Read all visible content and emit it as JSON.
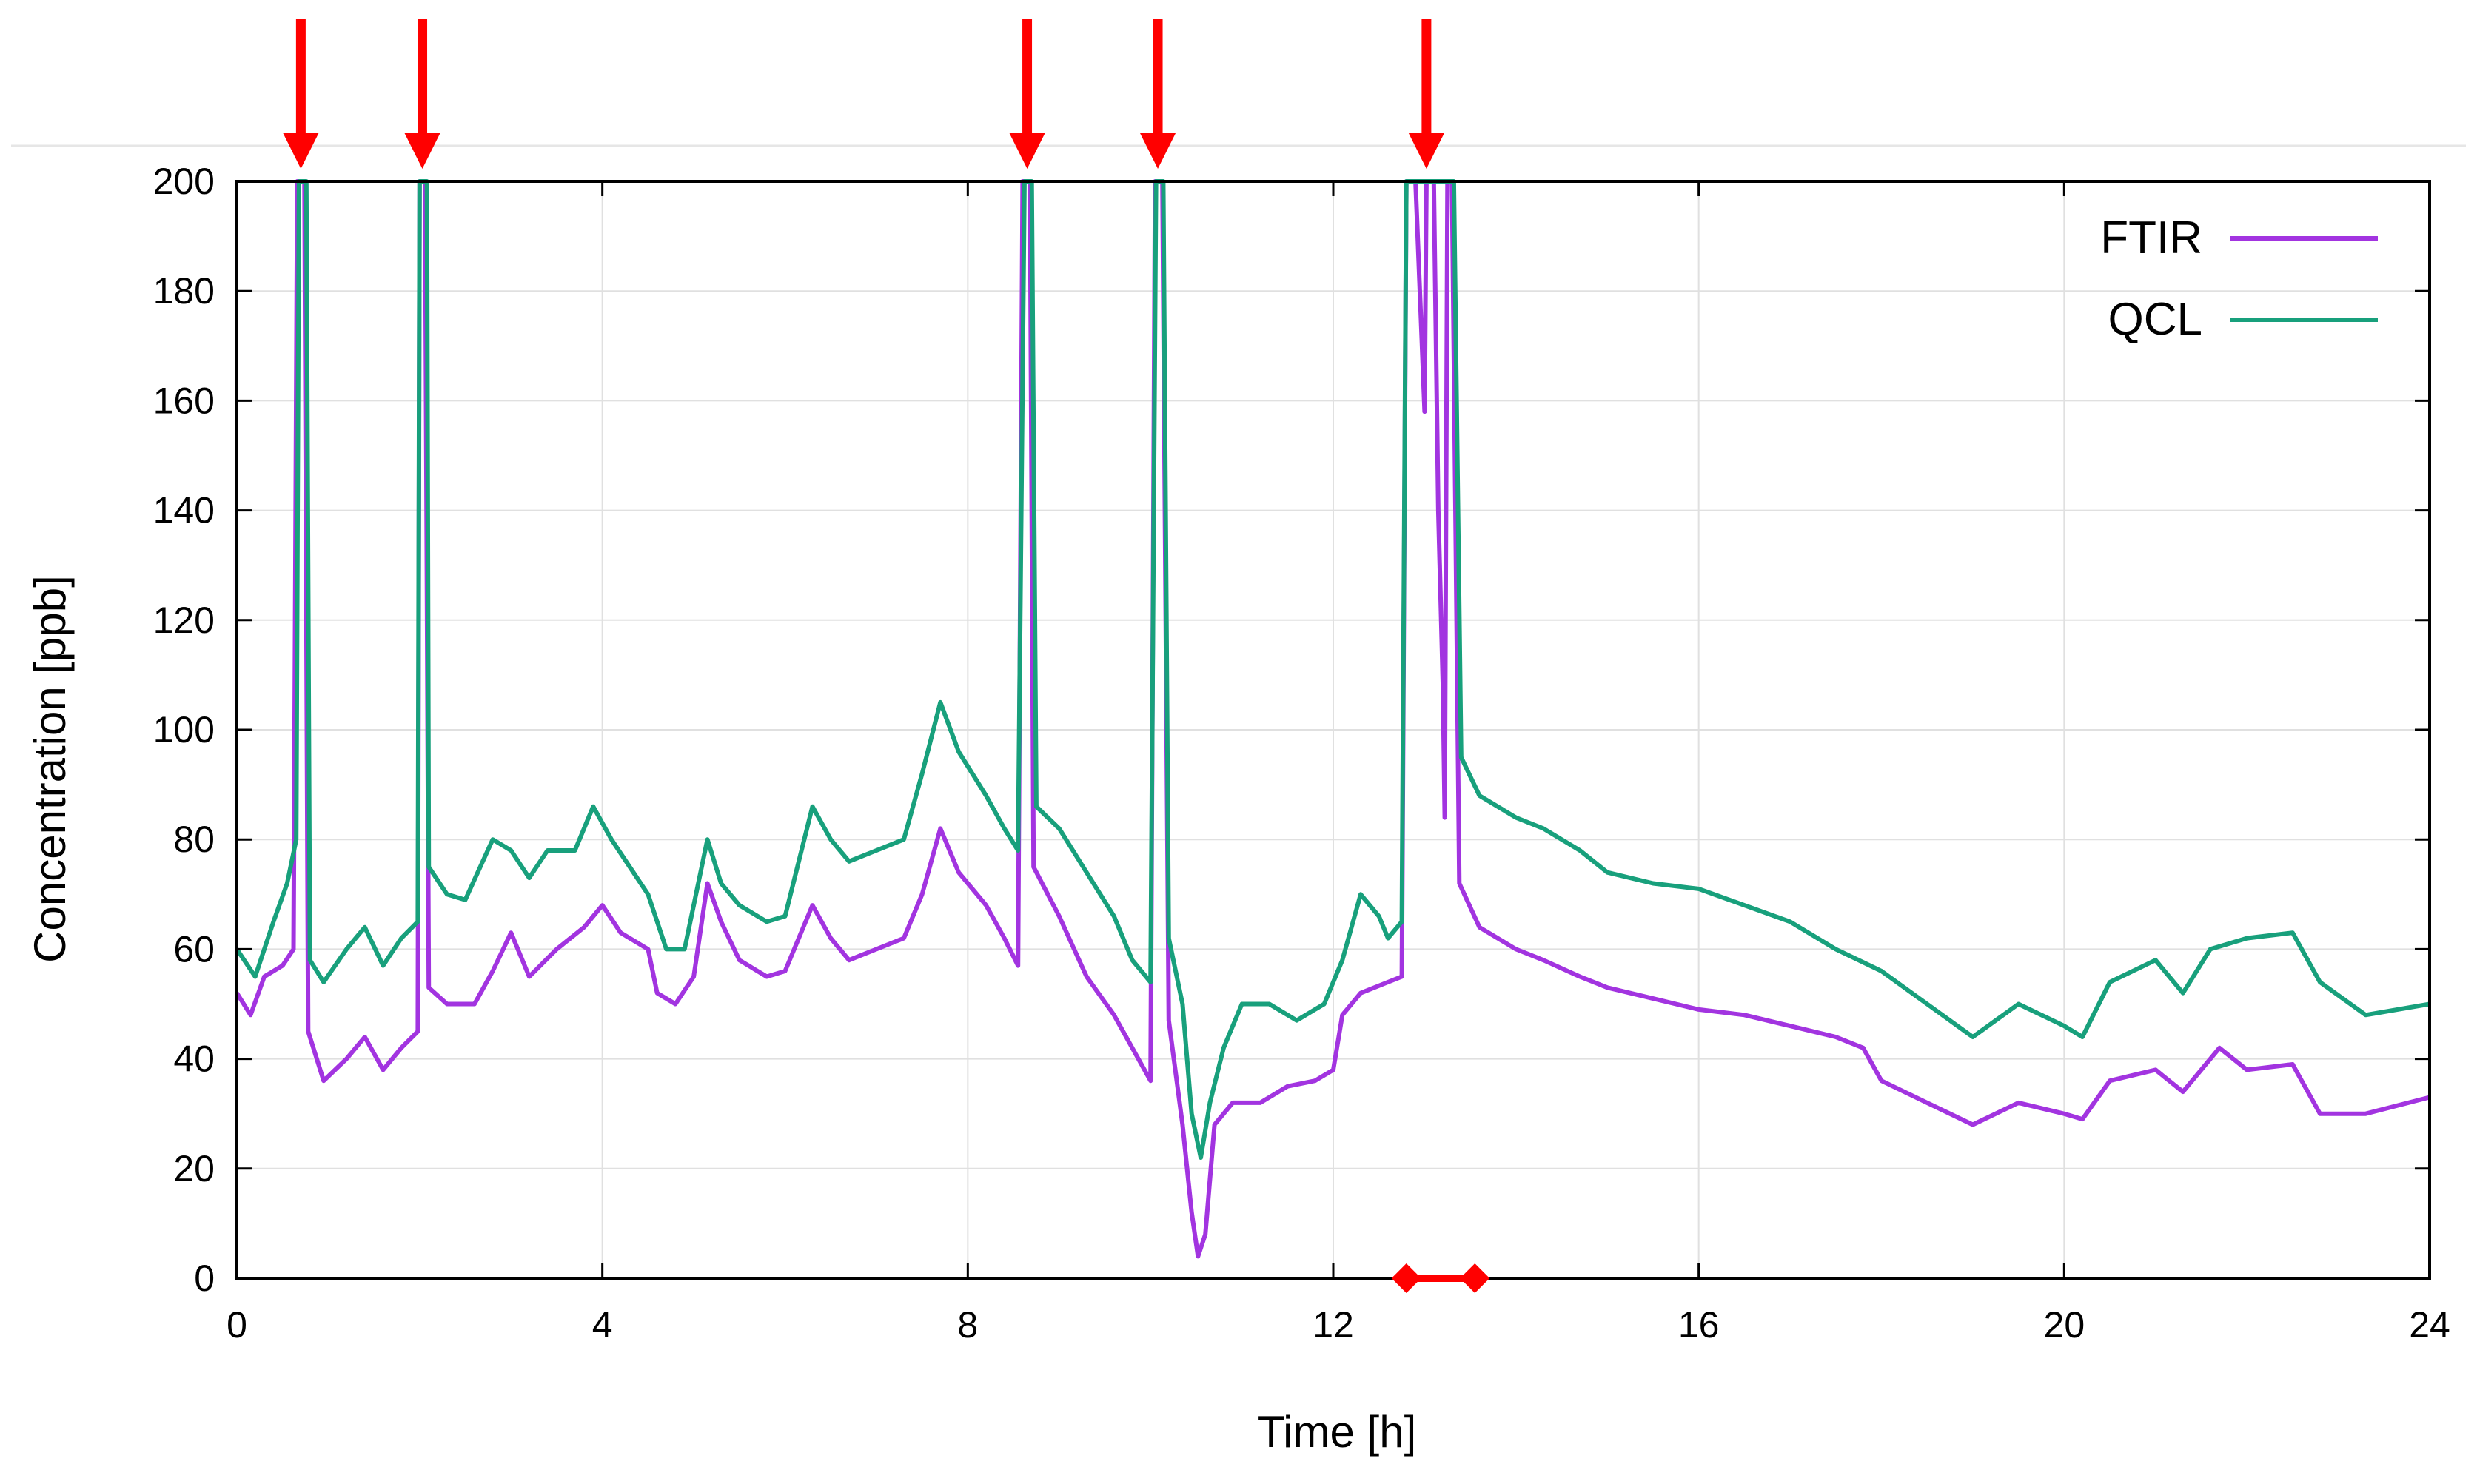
{
  "chart_data": {
    "type": "line",
    "title": "",
    "xlabel": "Time [h]",
    "ylabel": "Concentration [ppb]",
    "xlim": [
      0,
      24
    ],
    "ylim": [
      0,
      200
    ],
    "x_ticks": [
      0,
      4,
      8,
      12,
      16,
      20,
      24
    ],
    "y_ticks": [
      0,
      20,
      40,
      60,
      80,
      100,
      120,
      140,
      160,
      180,
      200
    ],
    "grid": true,
    "legend_position": "top-right",
    "series": [
      {
        "name": "FTIR",
        "color": "#a234e0",
        "points": [
          [
            0,
            52
          ],
          [
            0.15,
            48
          ],
          [
            0.3,
            55
          ],
          [
            0.5,
            57
          ],
          [
            0.62,
            60
          ],
          [
            0.66,
            200
          ],
          [
            0.74,
            200
          ],
          [
            0.78,
            45
          ],
          [
            0.95,
            36
          ],
          [
            1.2,
            40
          ],
          [
            1.4,
            44
          ],
          [
            1.6,
            38
          ],
          [
            1.8,
            42
          ],
          [
            1.98,
            45
          ],
          [
            2.0,
            200
          ],
          [
            2.06,
            200
          ],
          [
            2.1,
            53
          ],
          [
            2.3,
            50
          ],
          [
            2.6,
            50
          ],
          [
            2.8,
            56
          ],
          [
            3.0,
            63
          ],
          [
            3.2,
            55
          ],
          [
            3.5,
            60
          ],
          [
            3.8,
            64
          ],
          [
            4.0,
            68
          ],
          [
            4.2,
            63
          ],
          [
            4.5,
            60
          ],
          [
            4.6,
            52
          ],
          [
            4.8,
            50
          ],
          [
            5.0,
            55
          ],
          [
            5.15,
            72
          ],
          [
            5.3,
            65
          ],
          [
            5.5,
            58
          ],
          [
            5.8,
            55
          ],
          [
            6.0,
            56
          ],
          [
            6.3,
            68
          ],
          [
            6.5,
            62
          ],
          [
            6.7,
            58
          ],
          [
            7.0,
            60
          ],
          [
            7.3,
            62
          ],
          [
            7.5,
            70
          ],
          [
            7.7,
            82
          ],
          [
            7.9,
            74
          ],
          [
            8.2,
            68
          ],
          [
            8.4,
            62
          ],
          [
            8.55,
            57
          ],
          [
            8.6,
            200
          ],
          [
            8.68,
            200
          ],
          [
            8.72,
            75
          ],
          [
            9.0,
            66
          ],
          [
            9.3,
            55
          ],
          [
            9.6,
            48
          ],
          [
            9.8,
            42
          ],
          [
            10.0,
            36
          ],
          [
            10.05,
            200
          ],
          [
            10.13,
            200
          ],
          [
            10.2,
            47
          ],
          [
            10.35,
            28
          ],
          [
            10.45,
            12
          ],
          [
            10.52,
            4
          ],
          [
            10.6,
            8
          ],
          [
            10.7,
            28
          ],
          [
            10.9,
            32
          ],
          [
            11.2,
            32
          ],
          [
            11.5,
            35
          ],
          [
            11.8,
            36
          ],
          [
            12.0,
            38
          ],
          [
            12.1,
            48
          ],
          [
            12.3,
            52
          ],
          [
            12.6,
            54
          ],
          [
            12.75,
            55
          ],
          [
            12.8,
            200
          ],
          [
            12.9,
            200
          ],
          [
            13.0,
            158
          ],
          [
            13.02,
            200
          ],
          [
            13.1,
            200
          ],
          [
            13.15,
            140
          ],
          [
            13.2,
            108
          ],
          [
            13.22,
            84
          ],
          [
            13.25,
            200
          ],
          [
            13.3,
            200
          ],
          [
            13.38,
            72
          ],
          [
            13.6,
            64
          ],
          [
            14.0,
            60
          ],
          [
            14.3,
            58
          ],
          [
            14.7,
            55
          ],
          [
            15.0,
            53
          ],
          [
            15.5,
            51
          ],
          [
            16.0,
            49
          ],
          [
            16.5,
            48
          ],
          [
            17.0,
            46
          ],
          [
            17.5,
            44
          ],
          [
            17.8,
            42
          ],
          [
            18.0,
            36
          ],
          [
            18.5,
            32
          ],
          [
            19.0,
            28
          ],
          [
            19.5,
            32
          ],
          [
            20.0,
            30
          ],
          [
            20.2,
            29
          ],
          [
            20.5,
            36
          ],
          [
            21.0,
            38
          ],
          [
            21.3,
            34
          ],
          [
            21.7,
            42
          ],
          [
            22.0,
            38
          ],
          [
            22.5,
            39
          ],
          [
            22.8,
            30
          ],
          [
            23.3,
            30
          ],
          [
            24.0,
            33
          ]
        ]
      },
      {
        "name": "QCL",
        "color": "#18a07c",
        "points": [
          [
            0,
            60
          ],
          [
            0.2,
            55
          ],
          [
            0.4,
            65
          ],
          [
            0.55,
            72
          ],
          [
            0.65,
            80
          ],
          [
            0.68,
            200
          ],
          [
            0.76,
            200
          ],
          [
            0.8,
            58
          ],
          [
            0.95,
            54
          ],
          [
            1.2,
            60
          ],
          [
            1.4,
            64
          ],
          [
            1.6,
            57
          ],
          [
            1.8,
            62
          ],
          [
            1.98,
            65
          ],
          [
            2.0,
            200
          ],
          [
            2.08,
            200
          ],
          [
            2.1,
            75
          ],
          [
            2.3,
            70
          ],
          [
            2.5,
            69
          ],
          [
            2.8,
            80
          ],
          [
            3.0,
            78
          ],
          [
            3.2,
            73
          ],
          [
            3.4,
            78
          ],
          [
            3.7,
            78
          ],
          [
            3.9,
            86
          ],
          [
            4.1,
            80
          ],
          [
            4.3,
            75
          ],
          [
            4.5,
            70
          ],
          [
            4.7,
            60
          ],
          [
            4.9,
            60
          ],
          [
            5.15,
            80
          ],
          [
            5.3,
            72
          ],
          [
            5.5,
            68
          ],
          [
            5.8,
            65
          ],
          [
            6.0,
            66
          ],
          [
            6.3,
            86
          ],
          [
            6.5,
            80
          ],
          [
            6.7,
            76
          ],
          [
            7.0,
            78
          ],
          [
            7.3,
            80
          ],
          [
            7.5,
            92
          ],
          [
            7.7,
            105
          ],
          [
            7.9,
            96
          ],
          [
            8.2,
            88
          ],
          [
            8.4,
            82
          ],
          [
            8.55,
            78
          ],
          [
            8.62,
            200
          ],
          [
            8.7,
            200
          ],
          [
            8.75,
            86
          ],
          [
            9.0,
            82
          ],
          [
            9.3,
            74
          ],
          [
            9.6,
            66
          ],
          [
            9.8,
            58
          ],
          [
            10.0,
            54
          ],
          [
            10.06,
            200
          ],
          [
            10.14,
            200
          ],
          [
            10.2,
            62
          ],
          [
            10.35,
            50
          ],
          [
            10.45,
            30
          ],
          [
            10.55,
            22
          ],
          [
            10.65,
            32
          ],
          [
            10.8,
            42
          ],
          [
            11.0,
            50
          ],
          [
            11.3,
            50
          ],
          [
            11.6,
            47
          ],
          [
            11.9,
            50
          ],
          [
            12.1,
            58
          ],
          [
            12.3,
            70
          ],
          [
            12.5,
            66
          ],
          [
            12.6,
            62
          ],
          [
            12.75,
            65
          ],
          [
            12.8,
            200
          ],
          [
            12.88,
            200
          ],
          [
            13.2,
            200
          ],
          [
            13.32,
            200
          ],
          [
            13.4,
            95
          ],
          [
            13.6,
            88
          ],
          [
            14.0,
            84
          ],
          [
            14.3,
            82
          ],
          [
            14.7,
            78
          ],
          [
            15.0,
            74
          ],
          [
            15.5,
            72
          ],
          [
            16.0,
            71
          ],
          [
            16.5,
            68
          ],
          [
            17.0,
            65
          ],
          [
            17.5,
            60
          ],
          [
            18.0,
            56
          ],
          [
            18.5,
            50
          ],
          [
            19.0,
            44
          ],
          [
            19.5,
            50
          ],
          [
            20.0,
            46
          ],
          [
            20.2,
            44
          ],
          [
            20.5,
            54
          ],
          [
            21.0,
            58
          ],
          [
            21.3,
            52
          ],
          [
            21.6,
            60
          ],
          [
            22.0,
            62
          ],
          [
            22.5,
            63
          ],
          [
            22.8,
            54
          ],
          [
            23.3,
            48
          ],
          [
            24.0,
            50
          ]
        ]
      }
    ],
    "annotations": {
      "arrows_at_x": [
        0.7,
        2.03,
        8.65,
        10.08,
        13.02
      ],
      "arrow_color": "#ff0000",
      "x_interval_marker": [
        12.8,
        13.55
      ],
      "interval_color": "#ff0000"
    }
  }
}
